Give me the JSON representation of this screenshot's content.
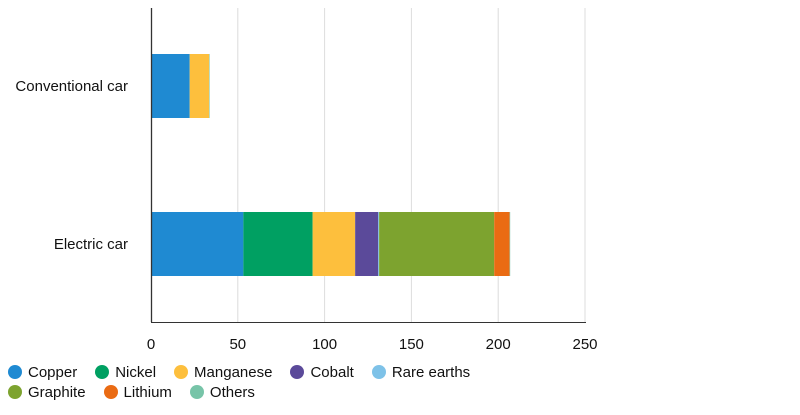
{
  "chart_data": {
    "type": "bar",
    "orientation": "horizontal",
    "stacked": true,
    "title": "",
    "xlabel": "",
    "ylabel": "",
    "xlim": [
      0,
      250
    ],
    "x_ticks": [
      0,
      50,
      100,
      150,
      200,
      250
    ],
    "x_tick_labels": [
      "0",
      "50",
      "100",
      "150",
      "200",
      "250"
    ],
    "grid": "vertical",
    "legend_position": "bottom-left",
    "categories": [
      "Conventional car",
      "Electric car"
    ],
    "series": [
      {
        "name": "Copper",
        "color": "#1f8ad2",
        "values": [
          22.3,
          53.2
        ]
      },
      {
        "name": "Nickel",
        "color": "#00a062",
        "values": [
          0,
          39.9
        ]
      },
      {
        "name": "Manganese",
        "color": "#fdbf3d",
        "values": [
          11.2,
          24.5
        ]
      },
      {
        "name": "Cobalt",
        "color": "#5b4a9a",
        "values": [
          0,
          13.3
        ]
      },
      {
        "name": "Rare earths",
        "color": "#7ec2e8",
        "values": [
          0,
          0.5
        ]
      },
      {
        "name": "Graphite",
        "color": "#7da32f",
        "values": [
          0,
          66.3
        ]
      },
      {
        "name": "Lithium",
        "color": "#ea6b13",
        "values": [
          0,
          8.9
        ]
      },
      {
        "name": "Others",
        "color": "#77c4a8",
        "values": [
          0.3,
          0.3
        ]
      }
    ],
    "legend_rows": [
      [
        "Copper",
        "Nickel",
        "Manganese",
        "Cobalt",
        "Rare earths"
      ],
      [
        "Graphite",
        "Lithium",
        "Others"
      ]
    ]
  }
}
